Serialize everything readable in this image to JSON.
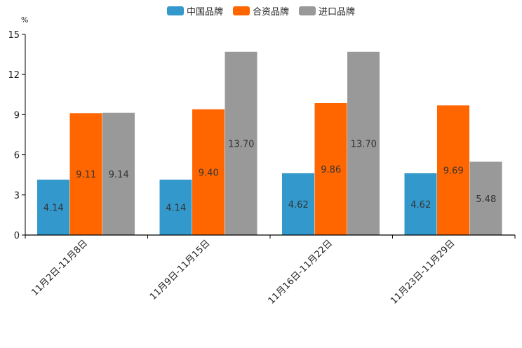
{
  "chart_data": {
    "type": "bar",
    "unit": "%",
    "categories": [
      "11月2日-11月8日",
      "11月9日-11月15日",
      "11月16日-11月22日",
      "11月23日-11月29日"
    ],
    "series": [
      {
        "name": "中国品牌",
        "color": "#3399cc",
        "values": [
          4.14,
          4.14,
          4.62,
          4.62
        ]
      },
      {
        "name": "合资品牌",
        "color": "#ff6600",
        "values": [
          9.11,
          9.4,
          9.86,
          9.69
        ]
      },
      {
        "name": "进口品牌",
        "color": "#999999",
        "values": [
          9.14,
          13.7,
          13.7,
          5.48
        ]
      }
    ],
    "ylim": [
      0,
      15
    ],
    "yticks": [
      0,
      3,
      6,
      9,
      12,
      15
    ],
    "xlabel": "",
    "ylabel": "%",
    "legend_position": "top-center"
  }
}
